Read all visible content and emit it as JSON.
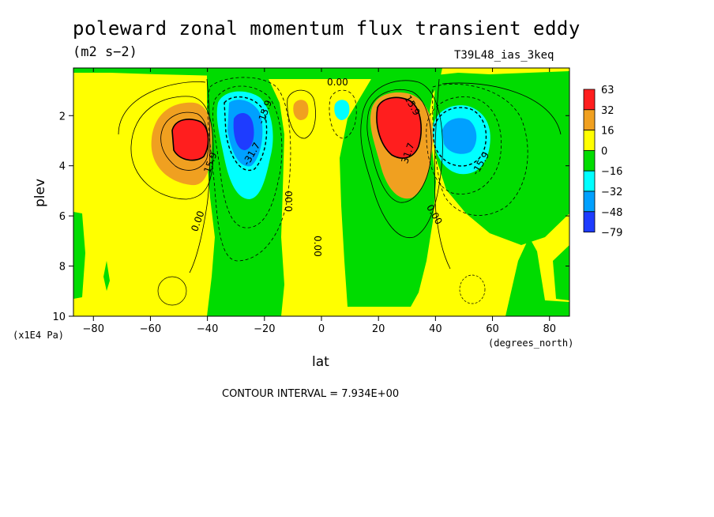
{
  "title": "poleward zonal momentum flux transient eddy",
  "units": "(m2 s−2)",
  "run_id": "T39L48_ias_3keq",
  "contour_note": "CONTOUR INTERVAL = 7.934E+00",
  "chart_data": {
    "type": "heatmap",
    "title": "poleward zonal momentum flux transient eddy",
    "xlabel": "lat",
    "xunits": "(degrees_north)",
    "ylabel": "plev",
    "yunits": "(x1E4 Pa)",
    "xlim": [
      -87,
      87
    ],
    "ylim": [
      10,
      0.1
    ],
    "y_inverted": true,
    "x_ticks": [
      -80,
      -60,
      -40,
      -20,
      0,
      20,
      40,
      60,
      80
    ],
    "y_ticks": [
      2,
      4,
      6,
      8,
      10
    ],
    "contour_interval": 7.934,
    "contour_labels": [
      {
        "text": "15.9",
        "lat": -40,
        "plev": 4.0
      },
      {
        "text": "0.00",
        "lat": -44,
        "plev": 6.1
      },
      {
        "text": "-15.9",
        "lat": -20,
        "plev": 1.9
      },
      {
        "text": "-31.7",
        "lat": -25,
        "plev": 3.4
      },
      {
        "text": "0.00",
        "lat": -12,
        "plev": 5.5
      },
      {
        "text": "0.00",
        "lat": 0,
        "plev": 7.0
      },
      {
        "text": "0.00",
        "lat": 7,
        "plev": 0.5
      },
      {
        "text": "15.9",
        "lat": 34,
        "plev": 1.8
      },
      {
        "text": "31.7",
        "lat": 30,
        "plev": 3.5
      },
      {
        "text": "0.00",
        "lat": 40,
        "plev": 5.8
      },
      {
        "text": "-15.9",
        "lat": 56,
        "plev": 3.9
      }
    ],
    "colorbar": {
      "levels": [
        "63",
        "32",
        "16",
        "0",
        "−16",
        "−32",
        "−48",
        "−79"
      ],
      "colors": [
        "#ff1e1e",
        "#f0a020",
        "#ffff00",
        "#00dc00",
        "#00ffff",
        "#00a0ff",
        "#1e3cff"
      ]
    },
    "features": [
      {
        "kind": "max",
        "lat": -47,
        "plev": 2.9,
        "value": 45
      },
      {
        "kind": "min",
        "lat": -27,
        "plev": 2.6,
        "value": -55
      },
      {
        "kind": "max",
        "lat": -7,
        "plev": 1.6,
        "value": 20
      },
      {
        "kind": "min",
        "lat": 8,
        "plev": 1.6,
        "value": -20
      },
      {
        "kind": "max",
        "lat": 28,
        "plev": 2.6,
        "value": 60
      },
      {
        "kind": "min",
        "lat": 48,
        "plev": 2.9,
        "value": -35
      }
    ]
  }
}
